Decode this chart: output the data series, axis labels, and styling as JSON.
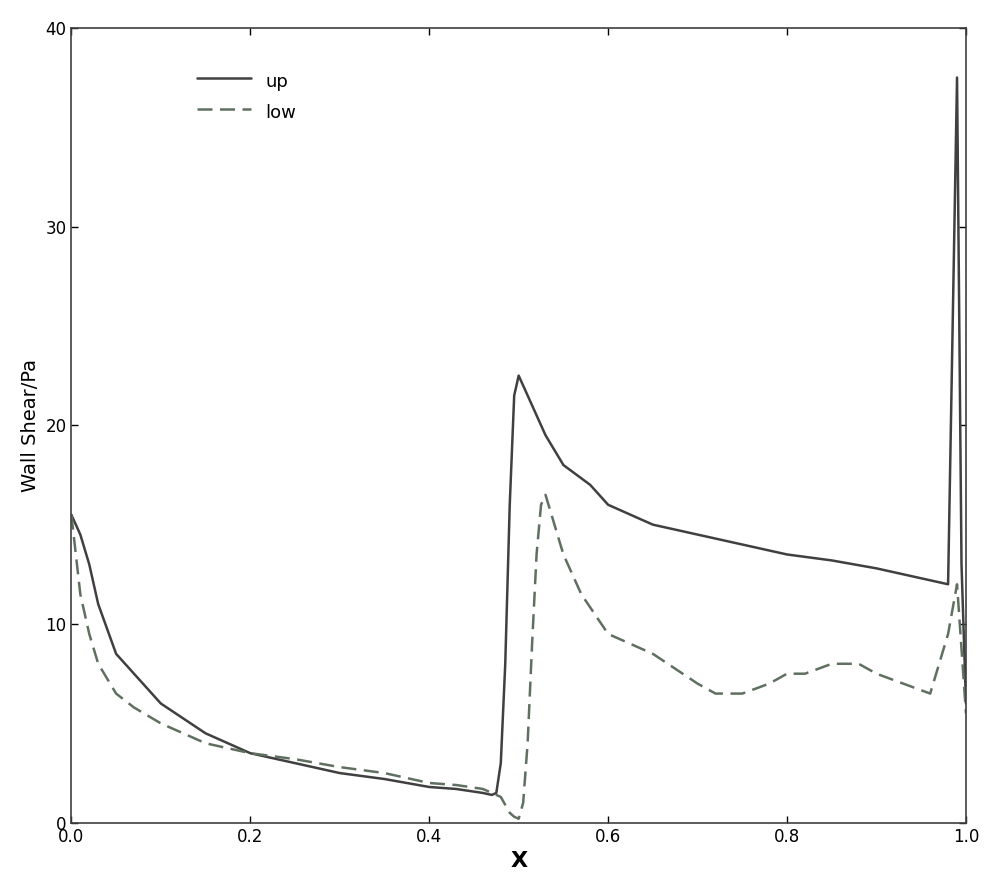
{
  "title": "",
  "xlabel": "X",
  "ylabel": "Wall Shear/Pa",
  "xlim": [
    0,
    1
  ],
  "ylim": [
    0,
    40
  ],
  "xticks": [
    0,
    0.2,
    0.4,
    0.6,
    0.8,
    1.0
  ],
  "yticks": [
    0,
    10,
    20,
    30,
    40
  ],
  "line_color": "#404040",
  "background_color": "#ffffff",
  "up_x": [
    0.0,
    0.01,
    0.02,
    0.03,
    0.05,
    0.07,
    0.1,
    0.15,
    0.2,
    0.25,
    0.3,
    0.35,
    0.4,
    0.43,
    0.46,
    0.47,
    0.475,
    0.48,
    0.485,
    0.49,
    0.495,
    0.5,
    0.505,
    0.51,
    0.52,
    0.53,
    0.55,
    0.58,
    0.6,
    0.65,
    0.7,
    0.75,
    0.8,
    0.85,
    0.9,
    0.93,
    0.96,
    0.98,
    0.99,
    0.995,
    1.0
  ],
  "up_y": [
    15.5,
    14.5,
    13.0,
    11.0,
    8.5,
    7.5,
    6.0,
    4.5,
    3.5,
    3.0,
    2.5,
    2.2,
    1.8,
    1.7,
    1.5,
    1.4,
    1.5,
    3.0,
    8.0,
    16.0,
    21.5,
    22.5,
    22.0,
    21.5,
    20.5,
    19.5,
    18.0,
    17.0,
    16.0,
    15.0,
    14.5,
    14.0,
    13.5,
    13.2,
    12.8,
    12.5,
    12.2,
    12.0,
    37.5,
    13.0,
    6.0
  ],
  "low_x": [
    0.0,
    0.01,
    0.02,
    0.03,
    0.05,
    0.07,
    0.1,
    0.15,
    0.2,
    0.25,
    0.3,
    0.35,
    0.4,
    0.43,
    0.46,
    0.47,
    0.475,
    0.48,
    0.49,
    0.495,
    0.5,
    0.505,
    0.51,
    0.515,
    0.52,
    0.525,
    0.53,
    0.54,
    0.55,
    0.57,
    0.6,
    0.65,
    0.7,
    0.72,
    0.75,
    0.78,
    0.8,
    0.82,
    0.85,
    0.88,
    0.9,
    0.93,
    0.96,
    0.98,
    0.99,
    1.0
  ],
  "low_y": [
    15.5,
    11.5,
    9.5,
    8.0,
    6.5,
    5.8,
    5.0,
    4.0,
    3.5,
    3.2,
    2.8,
    2.5,
    2.0,
    1.9,
    1.7,
    1.5,
    1.4,
    1.3,
    0.5,
    0.3,
    0.2,
    1.0,
    4.0,
    9.0,
    13.5,
    16.0,
    16.5,
    15.0,
    13.5,
    11.5,
    9.5,
    8.5,
    7.0,
    6.5,
    6.5,
    7.0,
    7.5,
    7.5,
    8.0,
    8.0,
    7.5,
    7.0,
    6.5,
    9.5,
    12.0,
    5.5
  ]
}
